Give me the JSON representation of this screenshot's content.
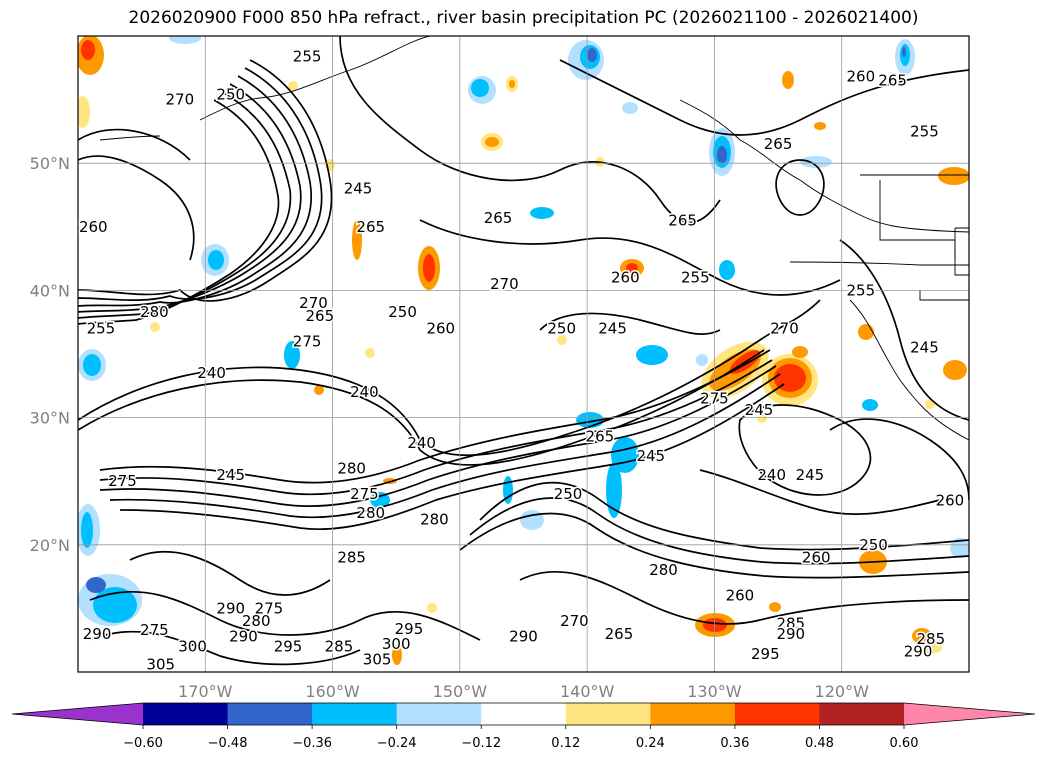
{
  "title": "2026020900 F000 850 hPa refract., river basin precipitation PC (2026021100 - 2026021400)",
  "latitudes": [
    {
      "label": "50°N",
      "value": 50
    },
    {
      "label": "40°N",
      "value": 40
    },
    {
      "label": "30°N",
      "value": 30
    },
    {
      "label": "20°N",
      "value": 20
    }
  ],
  "longitudes": [
    {
      "label": "170°W",
      "value": -170
    },
    {
      "label": "160°W",
      "value": -160
    },
    {
      "label": "150°W",
      "value": -150
    },
    {
      "label": "140°W",
      "value": -140
    },
    {
      "label": "130°W",
      "value": -130
    },
    {
      "label": "120°W",
      "value": -120
    }
  ],
  "map_extent": {
    "lon_min": -180,
    "lon_max": -110,
    "lat_min": 10,
    "lat_max": 60
  },
  "contour_labels": [
    {
      "text": "255",
      "lon": -178.2,
      "lat": 37.0
    },
    {
      "text": "280",
      "lon": -174.0,
      "lat": 38.3
    },
    {
      "text": "260",
      "lon": -178.8,
      "lat": 45.0
    },
    {
      "text": "270",
      "lon": -172.0,
      "lat": 55.0
    },
    {
      "text": "250",
      "lon": -168.0,
      "lat": 55.4
    },
    {
      "text": "255",
      "lon": -162.0,
      "lat": 58.4
    },
    {
      "text": "250",
      "lon": -157.0,
      "lat": 59.5
    },
    {
      "text": "245",
      "lon": -158.0,
      "lat": 48.0
    },
    {
      "text": "250",
      "lon": -154.5,
      "lat": 38.3
    },
    {
      "text": "260",
      "lon": -151.5,
      "lat": 37.0
    },
    {
      "text": "240",
      "lon": -169.5,
      "lat": 33.5
    },
    {
      "text": "240",
      "lon": -157.5,
      "lat": 32.0
    },
    {
      "text": "240",
      "lon": -153.0,
      "lat": 28.0
    },
    {
      "text": "245",
      "lon": -168.0,
      "lat": 25.5
    },
    {
      "text": "265",
      "lon": -147.0,
      "lat": 45.7
    },
    {
      "text": "270",
      "lon": -146.5,
      "lat": 40.5
    },
    {
      "text": "250",
      "lon": -142.0,
      "lat": 37.0
    },
    {
      "text": "245",
      "lon": -138.0,
      "lat": 37.0
    },
    {
      "text": "245",
      "lon": -135.0,
      "lat": 27.0
    },
    {
      "text": "245",
      "lon": -122.5,
      "lat": 25.5
    },
    {
      "text": "240",
      "lon": -125.5,
      "lat": 25.5
    },
    {
      "text": "245",
      "lon": -126.5,
      "lat": 30.6
    },
    {
      "text": "260",
      "lon": -137.0,
      "lat": 41.0
    },
    {
      "text": "255",
      "lon": -131.5,
      "lat": 41.0
    },
    {
      "text": "265",
      "lon": -132.5,
      "lat": 45.5
    },
    {
      "text": "265",
      "lon": -125.0,
      "lat": 51.5
    },
    {
      "text": "260",
      "lon": -118.5,
      "lat": 56.8
    },
    {
      "text": "265",
      "lon": -116.0,
      "lat": 56.5
    },
    {
      "text": "255",
      "lon": -113.5,
      "lat": 52.5
    },
    {
      "text": "255",
      "lon": -118.5,
      "lat": 40.0
    },
    {
      "text": "245",
      "lon": -113.5,
      "lat": 35.5
    },
    {
      "text": "270",
      "lon": -124.5,
      "lat": 37.0
    },
    {
      "text": "275",
      "lon": -130.0,
      "lat": 31.5
    },
    {
      "text": "265",
      "lon": -139.0,
      "lat": 28.5
    },
    {
      "text": "250",
      "lon": -141.5,
      "lat": 24.0
    },
    {
      "text": "250",
      "lon": -117.5,
      "lat": 20.0
    },
    {
      "text": "260",
      "lon": -122.0,
      "lat": 19.0
    },
    {
      "text": "280",
      "lon": -134.0,
      "lat": 18.0
    },
    {
      "text": "260",
      "lon": -111.5,
      "lat": 23.5
    },
    {
      "text": "280",
      "lon": -157.0,
      "lat": 22.5
    },
    {
      "text": "275",
      "lon": -157.5,
      "lat": 24.0
    },
    {
      "text": "265",
      "lon": -157.0,
      "lat": 45.0
    },
    {
      "text": "270",
      "lon": -161.5,
      "lat": 39.0
    },
    {
      "text": "275",
      "lon": -162.0,
      "lat": 36.0
    },
    {
      "text": "265",
      "lon": -161.0,
      "lat": 38.0
    },
    {
      "text": "275",
      "lon": -176.5,
      "lat": 25.0
    },
    {
      "text": "285",
      "lon": -158.5,
      "lat": 19.0
    },
    {
      "text": "280",
      "lon": -152.0,
      "lat": 22.0
    },
    {
      "text": "280",
      "lon": -166.0,
      "lat": 14.0
    },
    {
      "text": "290",
      "lon": -168.0,
      "lat": 15.0
    },
    {
      "text": "275",
      "lon": -165.0,
      "lat": 15.0
    },
    {
      "text": "290",
      "lon": -167.0,
      "lat": 12.8
    },
    {
      "text": "275",
      "lon": -174.0,
      "lat": 13.3
    },
    {
      "text": "290",
      "lon": -178.5,
      "lat": 13.0
    },
    {
      "text": "300",
      "lon": -171.0,
      "lat": 12.0
    },
    {
      "text": "305",
      "lon": -173.5,
      "lat": 10.6
    },
    {
      "text": "295",
      "lon": -163.5,
      "lat": 12.0
    },
    {
      "text": "285",
      "lon": -159.5,
      "lat": 12.0
    },
    {
      "text": "305",
      "lon": -156.5,
      "lat": 11.0
    },
    {
      "text": "300",
      "lon": -155.0,
      "lat": 12.2
    },
    {
      "text": "295",
      "lon": -154.0,
      "lat": 13.4
    },
    {
      "text": "290",
      "lon": -145.0,
      "lat": 12.8
    },
    {
      "text": "270",
      "lon": -141.0,
      "lat": 14.0
    },
    {
      "text": "265",
      "lon": -137.5,
      "lat": 13.0
    },
    {
      "text": "260",
      "lon": -128.0,
      "lat": 16.0
    },
    {
      "text": "285",
      "lon": -124.0,
      "lat": 13.8
    },
    {
      "text": "290",
      "lon": -124.0,
      "lat": 13.0
    },
    {
      "text": "295",
      "lon": -126.0,
      "lat": 11.4
    },
    {
      "text": "285",
      "lon": -113.0,
      "lat": 12.6
    },
    {
      "text": "290",
      "lon": -114.0,
      "lat": 11.6
    },
    {
      "text": "280",
      "lon": -158.5,
      "lat": 26.0
    }
  ],
  "colorbar": {
    "colors": [
      "#9933cc",
      "#000099",
      "#3366cc",
      "#00bfff",
      "#b3e0ff",
      "#ffffff",
      "#ffe680",
      "#ff9900",
      "#ff3300",
      "#b22222",
      "#ff85aa"
    ],
    "tick_labels": [
      "−0.60",
      "−0.48",
      "−0.36",
      "−0.24",
      "−0.12",
      "0.12",
      "0.24",
      "0.36",
      "0.48",
      "0.60"
    ],
    "ticks": [
      -0.6,
      -0.48,
      -0.36,
      -0.24,
      -0.12,
      0.12,
      0.24,
      0.36,
      0.48,
      0.6
    ]
  },
  "colors": {
    "contour": "#000000",
    "grid": "#999999",
    "coast": "#000000",
    "axis_label": "#808080"
  }
}
